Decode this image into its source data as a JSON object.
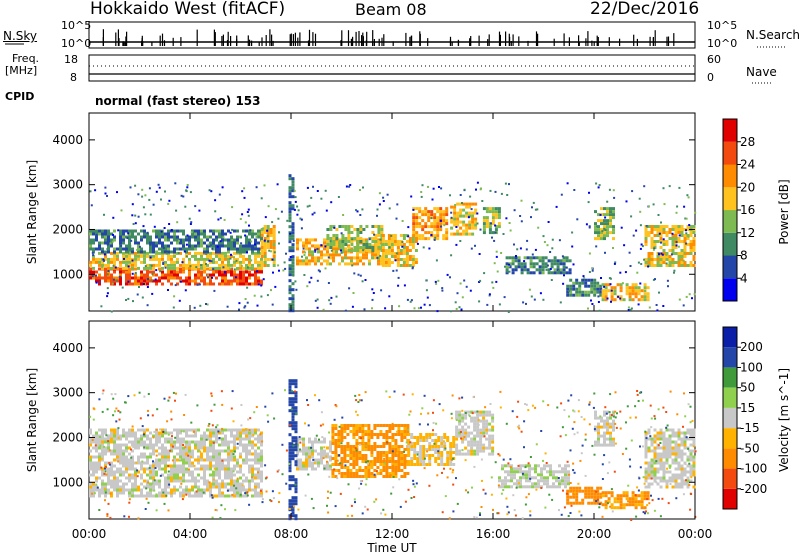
{
  "header": {
    "radar": "Hokkaido West (fitACF)",
    "beam": "Beam 08",
    "date": "22/Dec/2016"
  },
  "labels": {
    "nsky": "N.Sky",
    "nsearch": "N.Search",
    "freq_line1": "Freq.",
    "freq_line2": "[MHz]",
    "nave": "Nave",
    "cpid": "CPID",
    "cpid_value": "normal (fast stereo) 153",
    "nsky_tick_top": "10^5",
    "nsky_tick_bottom": "10^0",
    "nsearch_tick_top": "10^5",
    "nsearch_tick_bottom": "10^0",
    "freq_tick_top": "18",
    "freq_tick_bottom": "8",
    "nave_tick_top": "60",
    "nave_tick_bottom": "0"
  },
  "colors": {
    "power_scale": [
      "#0000ee",
      "#2446a8",
      "#3f8a63",
      "#7dbb52",
      "#ffc21e",
      "#ff8c00",
      "#f34a10",
      "#e00000"
    ],
    "velocity_scale": [
      "#e00000",
      "#f34a10",
      "#ff8c00",
      "#ffb300",
      "#c8c8c8",
      "#8fd14f",
      "#3f9a3a",
      "#2446a8",
      "#0a1ea8"
    ]
  },
  "chart_data": [
    {
      "type": "heatmap",
      "title": "",
      "ylabel": "Slant Range [km]",
      "xlabel": "Time UT",
      "x_ticks": [
        "00:00",
        "04:00",
        "08:00",
        "12:00",
        "16:00",
        "20:00",
        "00:00"
      ],
      "y_ticks": [
        "1000",
        "2000",
        "3000",
        "4000"
      ],
      "xlim": [
        0,
        24
      ],
      "ylim": [
        180,
        4600
      ],
      "colorbar_label": "Power [dB]",
      "colorbar_ticks": [
        "4",
        "8",
        "12",
        "16",
        "20",
        "24",
        "28"
      ],
      "colorbar_range": [
        0,
        32
      ],
      "regions": [
        {
          "t": [
            0.0,
            6.8
          ],
          "r": [
            800,
            1150
          ],
          "v": 26
        },
        {
          "t": [
            0.0,
            6.8
          ],
          "r": [
            1150,
            1500
          ],
          "v": 17
        },
        {
          "t": [
            0.0,
            6.8
          ],
          "r": [
            1500,
            2000
          ],
          "v": 9
        },
        {
          "t": [
            6.8,
            7.3
          ],
          "r": [
            1200,
            2100
          ],
          "v": 18
        },
        {
          "t": [
            8.2,
            11.6
          ],
          "r": [
            1250,
            1800
          ],
          "v": 19
        },
        {
          "t": [
            9.4,
            11.6
          ],
          "r": [
            1500,
            2100
          ],
          "v": 14
        },
        {
          "t": [
            11.6,
            13.0
          ],
          "r": [
            1200,
            1900
          ],
          "v": 18
        },
        {
          "t": [
            12.8,
            14.2
          ],
          "r": [
            1800,
            2500
          ],
          "v": 21
        },
        {
          "t": [
            14.3,
            15.3
          ],
          "r": [
            1900,
            2600
          ],
          "v": 18
        },
        {
          "t": [
            15.6,
            16.2
          ],
          "r": [
            1900,
            2500
          ],
          "v": 14
        },
        {
          "t": [
            16.5,
            19.0
          ],
          "r": [
            1000,
            1400
          ],
          "v": 9
        },
        {
          "t": [
            18.9,
            20.3
          ],
          "r": [
            500,
            900
          ],
          "v": 10
        },
        {
          "t": [
            20.3,
            22.2
          ],
          "r": [
            400,
            800
          ],
          "v": 19
        },
        {
          "t": [
            20.0,
            20.8
          ],
          "r": [
            1800,
            2500
          ],
          "v": 14
        },
        {
          "t": [
            22.0,
            24.0
          ],
          "r": [
            1200,
            2100
          ],
          "v": 18
        },
        {
          "t": [
            7.9,
            8.1
          ],
          "r": [
            200,
            3300
          ],
          "v": 8
        }
      ]
    },
    {
      "type": "heatmap",
      "title": "",
      "ylabel": "Slant Range [km]",
      "xlabel": "Time UT",
      "x_ticks": [
        "00:00",
        "04:00",
        "08:00",
        "12:00",
        "16:00",
        "20:00",
        "00:00"
      ],
      "y_ticks": [
        "1000",
        "2000",
        "3000",
        "4000"
      ],
      "xlim": [
        0,
        24
      ],
      "ylim": [
        180,
        4600
      ],
      "colorbar_label": "Velocity [m s^-1]",
      "colorbar_ticks": [
        "-200",
        "-100",
        "-50",
        "-15",
        "15",
        "50",
        "100",
        "200"
      ],
      "colorbar_range": [
        -250,
        250
      ],
      "regions": [
        {
          "t": [
            0.0,
            6.8
          ],
          "r": [
            700,
            2200
          ],
          "v": 0
        },
        {
          "t": [
            8.2,
            9.6
          ],
          "r": [
            1300,
            2000
          ],
          "v": 0
        },
        {
          "t": [
            9.6,
            12.6
          ],
          "r": [
            1100,
            2300
          ],
          "v": -60
        },
        {
          "t": [
            12.6,
            14.5
          ],
          "r": [
            1400,
            2100
          ],
          "v": -20
        },
        {
          "t": [
            14.5,
            16.0
          ],
          "r": [
            1600,
            2600
          ],
          "v": 0
        },
        {
          "t": [
            16.2,
            19.0
          ],
          "r": [
            900,
            1400
          ],
          "v": 5
        },
        {
          "t": [
            18.9,
            20.3
          ],
          "r": [
            500,
            900
          ],
          "v": -70
        },
        {
          "t": [
            20.3,
            22.2
          ],
          "r": [
            400,
            800
          ],
          "v": -55
        },
        {
          "t": [
            20.0,
            20.8
          ],
          "r": [
            1800,
            2600
          ],
          "v": 0
        },
        {
          "t": [
            22.0,
            24.0
          ],
          "r": [
            900,
            2200
          ],
          "v": 0
        },
        {
          "t": [
            7.9,
            8.2
          ],
          "r": [
            200,
            3300
          ],
          "v": 150
        }
      ]
    }
  ]
}
